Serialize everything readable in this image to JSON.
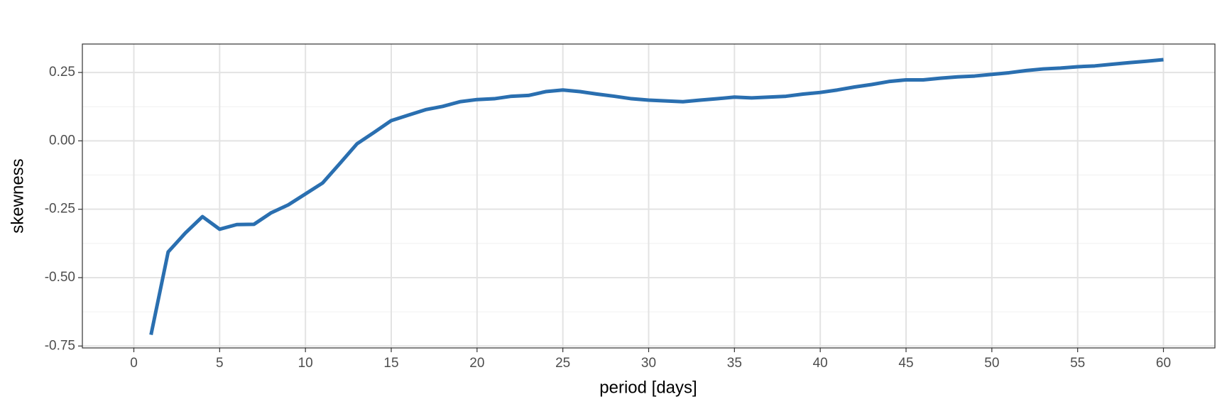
{
  "chart_data": {
    "type": "line",
    "x_label": "period [days]",
    "y_label": "skewness",
    "x": [
      1,
      2,
      3,
      4,
      5,
      6,
      7,
      8,
      9,
      10,
      11,
      12,
      13,
      14,
      15,
      16,
      17,
      18,
      19,
      20,
      21,
      22,
      23,
      24,
      25,
      26,
      27,
      28,
      29,
      30,
      31,
      32,
      33,
      34,
      35,
      36,
      37,
      38,
      39,
      40,
      41,
      42,
      43,
      44,
      45,
      46,
      47,
      48,
      49,
      50,
      51,
      52,
      53,
      54,
      55,
      56,
      57,
      58,
      59,
      60
    ],
    "values": [
      -0.709,
      -0.406,
      -0.337,
      -0.277,
      -0.323,
      -0.306,
      -0.305,
      -0.263,
      -0.234,
      -0.194,
      -0.154,
      -0.083,
      -0.011,
      0.031,
      0.074,
      0.094,
      0.114,
      0.126,
      0.143,
      0.151,
      0.154,
      0.163,
      0.166,
      0.18,
      0.186,
      0.18,
      0.171,
      0.163,
      0.154,
      0.149,
      0.146,
      0.143,
      0.149,
      0.154,
      0.16,
      0.157,
      0.16,
      0.163,
      0.171,
      0.177,
      0.186,
      0.197,
      0.206,
      0.217,
      0.223,
      0.223,
      0.229,
      0.234,
      0.237,
      0.243,
      0.249,
      0.257,
      0.263,
      0.266,
      0.271,
      0.274,
      0.28,
      0.286,
      0.291,
      0.297
    ],
    "color": "#2a6fb0",
    "xlim": [
      -3,
      63
    ],
    "xticks": [
      0,
      5,
      10,
      15,
      20,
      25,
      30,
      35,
      40,
      45,
      50,
      55,
      60
    ],
    "ylim": [
      -0.757,
      0.354
    ],
    "yticks": [
      {
        "value": -0.75,
        "label": "-0.75"
      },
      {
        "value": -0.5,
        "label": "-0.50"
      },
      -0.25,
      {
        "value": 0,
        "label": "0.00"
      },
      0.25
    ],
    "y_minor_ticks": [
      -0.625,
      -0.375,
      -0.125,
      0.125
    ],
    "grid": true
  }
}
